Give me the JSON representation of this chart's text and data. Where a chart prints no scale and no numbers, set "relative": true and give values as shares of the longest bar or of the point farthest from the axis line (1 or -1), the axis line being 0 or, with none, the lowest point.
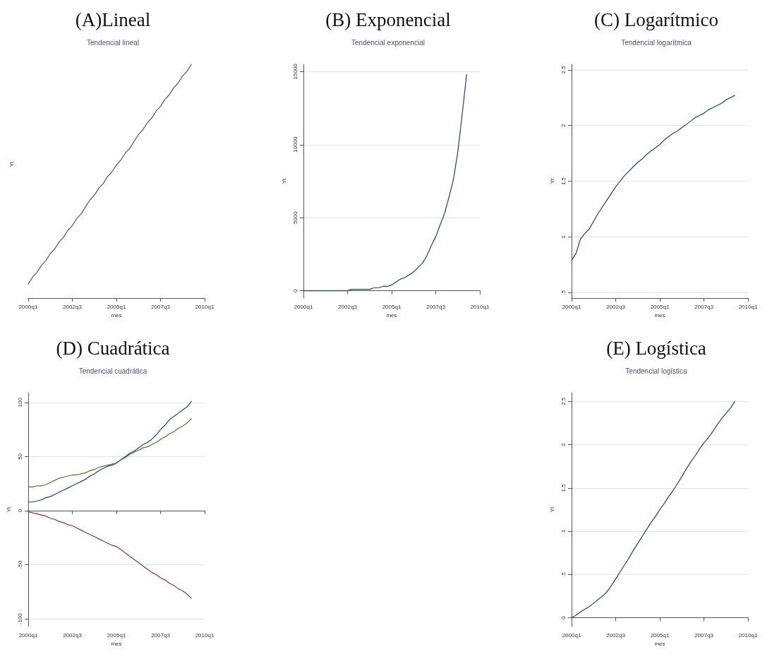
{
  "chart_data": [
    {
      "type": "line",
      "title": "(A)Lineal",
      "subtitle": "Tendencial lineal",
      "xlabel": "mes",
      "ylabel": "Yt",
      "relative": true,
      "categories": [
        "2000q1",
        null,
        null,
        null,
        null,
        null,
        null,
        null,
        null,
        null,
        "2002q3",
        null,
        null,
        null,
        null,
        null,
        null,
        null,
        null,
        null,
        "2005q1",
        null,
        null,
        null,
        null,
        null,
        null,
        null,
        null,
        null,
        "2007q3",
        null,
        null,
        null,
        null,
        null,
        null,
        null,
        null,
        null,
        "2010q1"
      ],
      "series": [
        {
          "color": "#555555",
          "values": [
            0.06,
            0.09,
            0.11,
            0.14,
            0.16,
            0.19,
            0.21,
            0.24,
            0.26,
            0.29,
            0.31,
            0.34,
            0.36,
            0.39,
            0.42,
            0.44,
            0.47,
            0.49,
            0.52,
            0.54,
            0.57,
            0.59,
            0.62,
            0.64,
            0.67,
            0.7,
            0.72,
            0.75,
            0.77,
            0.8,
            0.82,
            0.85,
            0.87,
            0.9,
            0.92,
            0.95,
            0.97,
            1,
            null,
            null,
            null
          ]
        }
      ]
    },
    {
      "type": "line",
      "title": "(B) Exponencial",
      "subtitle": "Tendencial exponencial",
      "xlabel": "mes",
      "ylabel": "Yt",
      "grid": "y",
      "ylim": [
        -500,
        15500
      ],
      "yticks": [
        0,
        5000,
        10000,
        15000
      ],
      "categories": [
        "2000q1",
        null,
        null,
        null,
        null,
        null,
        null,
        null,
        null,
        null,
        "2002q3",
        null,
        null,
        null,
        null,
        null,
        null,
        null,
        null,
        null,
        "2005q1",
        null,
        null,
        null,
        null,
        null,
        null,
        null,
        null,
        null,
        "2007q3",
        null,
        null,
        null,
        null,
        null,
        null,
        null,
        null,
        null,
        "2010q1"
      ],
      "series": [
        {
          "color": "#1a476f",
          "values": [
            0,
            0,
            0,
            0,
            0,
            0,
            0,
            0,
            0,
            0,
            0,
            100,
            100,
            100,
            100,
            100,
            200,
            200,
            300,
            300,
            400,
            600,
            800,
            900,
            1100,
            1300,
            1600,
            1900,
            2400,
            3100,
            3700,
            4500,
            5300,
            6400,
            7600,
            9500,
            12100,
            14800,
            null,
            null,
            null
          ]
        }
      ]
    },
    {
      "type": "line",
      "title": "(C) Logarítmico",
      "subtitle": "Tendencial logarítmica",
      "xlabel": "mes",
      "ylabel": "Yt",
      "grid": "y",
      "ylim": [
        0.45,
        2.55
      ],
      "yticks": [
        {
          "value": 0.5,
          "label": ".5"
        },
        1,
        1.5,
        2,
        2.5
      ],
      "categories": [
        "2000q1",
        null,
        null,
        null,
        null,
        null,
        null,
        null,
        null,
        null,
        "2002q3",
        null,
        null,
        null,
        null,
        null,
        null,
        null,
        null,
        null,
        "2005q1",
        null,
        null,
        null,
        null,
        null,
        null,
        null,
        null,
        null,
        "2007q3",
        null,
        null,
        null,
        null,
        null,
        null,
        null,
        null,
        null,
        "2010q1"
      ],
      "series": [
        {
          "color": "#1a476f",
          "values": [
            0.79,
            0.85,
            0.98,
            1.03,
            1.07,
            1.14,
            1.21,
            1.27,
            1.33,
            1.39,
            1.45,
            1.5,
            1.55,
            1.59,
            1.63,
            1.67,
            1.7,
            1.74,
            1.77,
            1.8,
            1.83,
            1.87,
            1.9,
            1.93,
            1.95,
            1.98,
            2.01,
            2.04,
            2.07,
            2.09,
            2.11,
            2.14,
            2.16,
            2.18,
            2.2,
            2.23,
            2.25,
            2.27,
            null,
            null,
            null
          ]
        }
      ]
    },
    {
      "type": "line",
      "title": "(D) Cuadrática",
      "subtitle": "Tendencial cuadrática",
      "xlabel": "mes",
      "ylabel": "Yt",
      "grid": "y",
      "ylim": [
        -107,
        109
      ],
      "yticks": [
        -100,
        -50,
        0,
        50,
        100
      ],
      "categories": [
        "2000q1",
        null,
        null,
        null,
        null,
        null,
        null,
        null,
        null,
        null,
        "2002q3",
        null,
        null,
        null,
        null,
        null,
        null,
        null,
        null,
        null,
        "2005q1",
        null,
        null,
        null,
        null,
        null,
        null,
        null,
        null,
        null,
        "2007q3",
        null,
        null,
        null,
        null,
        null,
        null,
        null,
        null,
        null,
        "2010q1"
      ],
      "series": [
        {
          "color": "#1a476f",
          "values": [
            8,
            8,
            9,
            10,
            12,
            13,
            15,
            17,
            19,
            21,
            23,
            25,
            27,
            29,
            32,
            34,
            37,
            39,
            41,
            42,
            44,
            47,
            50,
            53,
            55,
            58,
            61,
            63,
            66,
            70,
            75,
            79,
            84,
            87,
            90,
            93,
            96,
            101,
            null,
            null,
            null
          ]
        },
        {
          "color": "#55752f",
          "values": [
            22,
            22,
            23,
            23,
            24,
            26,
            28,
            30,
            31,
            32,
            33,
            33,
            34,
            35,
            37,
            38,
            40,
            41,
            42,
            43,
            44,
            47,
            49,
            52,
            54,
            56,
            58,
            59,
            61,
            63,
            66,
            68,
            71,
            73,
            76,
            78,
            81,
            85,
            null,
            null,
            null
          ]
        },
        {
          "color": "#90353b",
          "values": [
            -1,
            -2,
            -3,
            -4,
            -5,
            -7,
            -8,
            -10,
            -11,
            -13,
            -14,
            -16,
            -18,
            -20,
            -22,
            -24,
            -26,
            -28,
            -30,
            -32,
            -33,
            -36,
            -39,
            -42,
            -45,
            -48,
            -51,
            -54,
            -57,
            -59,
            -62,
            -64,
            -67,
            -69,
            -72,
            -74,
            -77,
            -81,
            null,
            null,
            null
          ]
        }
      ]
    },
    {
      "type": "line",
      "title": "(E) Logística",
      "subtitle": "Tendencial logística",
      "xlabel": "mes",
      "ylabel": "Yt",
      "grid": "y",
      "ylim": [
        -0.1,
        2.6
      ],
      "yticks": [
        0,
        {
          "value": 0.5,
          "label": ".5"
        },
        1,
        1.5,
        2,
        2.5
      ],
      "categories": [
        "2000q1",
        null,
        null,
        null,
        null,
        null,
        null,
        null,
        null,
        null,
        "2002q3",
        null,
        null,
        null,
        null,
        null,
        null,
        null,
        null,
        null,
        "2005q1",
        null,
        null,
        null,
        null,
        null,
        null,
        null,
        null,
        null,
        "2007q3",
        null,
        null,
        null,
        null,
        null,
        null,
        null,
        null,
        null,
        "2010q1"
      ],
      "series": [
        {
          "color": "#1a476f",
          "values": [
            0,
            0.03,
            0.07,
            0.1,
            0.13,
            0.17,
            0.21,
            0.25,
            0.3,
            0.37,
            0.45,
            0.53,
            0.61,
            0.69,
            0.78,
            0.86,
            0.94,
            1.02,
            1.1,
            1.17,
            1.25,
            1.32,
            1.4,
            1.47,
            1.55,
            1.63,
            1.72,
            1.8,
            1.87,
            1.95,
            2.02,
            2.08,
            2.15,
            2.23,
            2.3,
            2.36,
            2.42,
            2.5,
            null,
            null,
            null
          ]
        }
      ]
    }
  ]
}
